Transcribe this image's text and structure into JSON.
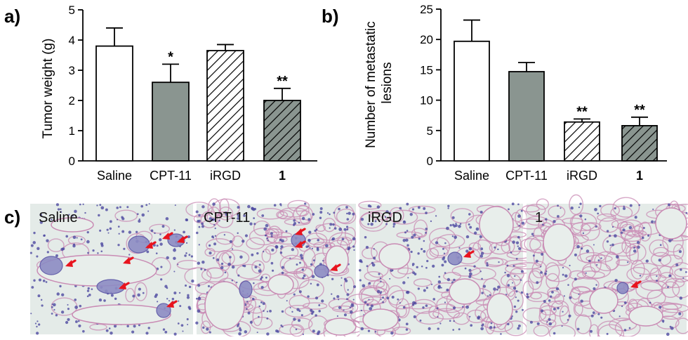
{
  "panels": {
    "a": "a)",
    "b": "b)",
    "c": "c)"
  },
  "chart_data": [
    {
      "type": "bar",
      "panel": "a)",
      "categories": [
        "Saline",
        "CPT-11",
        "iRGD",
        "1"
      ],
      "values": [
        3.8,
        2.6,
        3.65,
        2.0
      ],
      "errors": [
        0.6,
        0.6,
        0.2,
        0.4
      ],
      "significance": [
        "",
        "*",
        "",
        "**"
      ],
      "fills": [
        "white",
        "gray",
        "hatch-white",
        "hatch-gray"
      ],
      "ylabel": "Tumor weight (g)",
      "yticks": [
        0,
        1,
        2,
        3,
        4,
        5
      ],
      "ylim": [
        0,
        5
      ],
      "grid": false
    },
    {
      "type": "bar",
      "panel": "b)",
      "categories": [
        "Saline",
        "CPT-11",
        "iRGD",
        "1"
      ],
      "values": [
        19.7,
        14.7,
        6.4,
        5.8
      ],
      "errors": [
        3.5,
        1.5,
        0.5,
        1.4
      ],
      "significance": [
        "",
        "",
        "**",
        "**"
      ],
      "fills": [
        "white",
        "gray",
        "hatch-white",
        "hatch-gray"
      ],
      "ylabel_lines": [
        "Number of metastatic",
        "lesions"
      ],
      "yticks": [
        0,
        5,
        10,
        15,
        20,
        25
      ],
      "ylim": [
        0,
        25
      ],
      "grid": false
    }
  ],
  "micrographs": [
    {
      "label": "Saline",
      "arrows": 7
    },
    {
      "label": "CPT-11",
      "arrows": 3
    },
    {
      "label": "iRGD",
      "arrows": 1
    },
    {
      "label": "1",
      "arrows": 1
    }
  ],
  "colors": {
    "bar_gray": "#8a9590",
    "tissue_bg": "#e4ebe8",
    "tissue_pink": "#c98bb4",
    "nuclei": "#4d4aa0",
    "arrow": "#e8141e"
  }
}
